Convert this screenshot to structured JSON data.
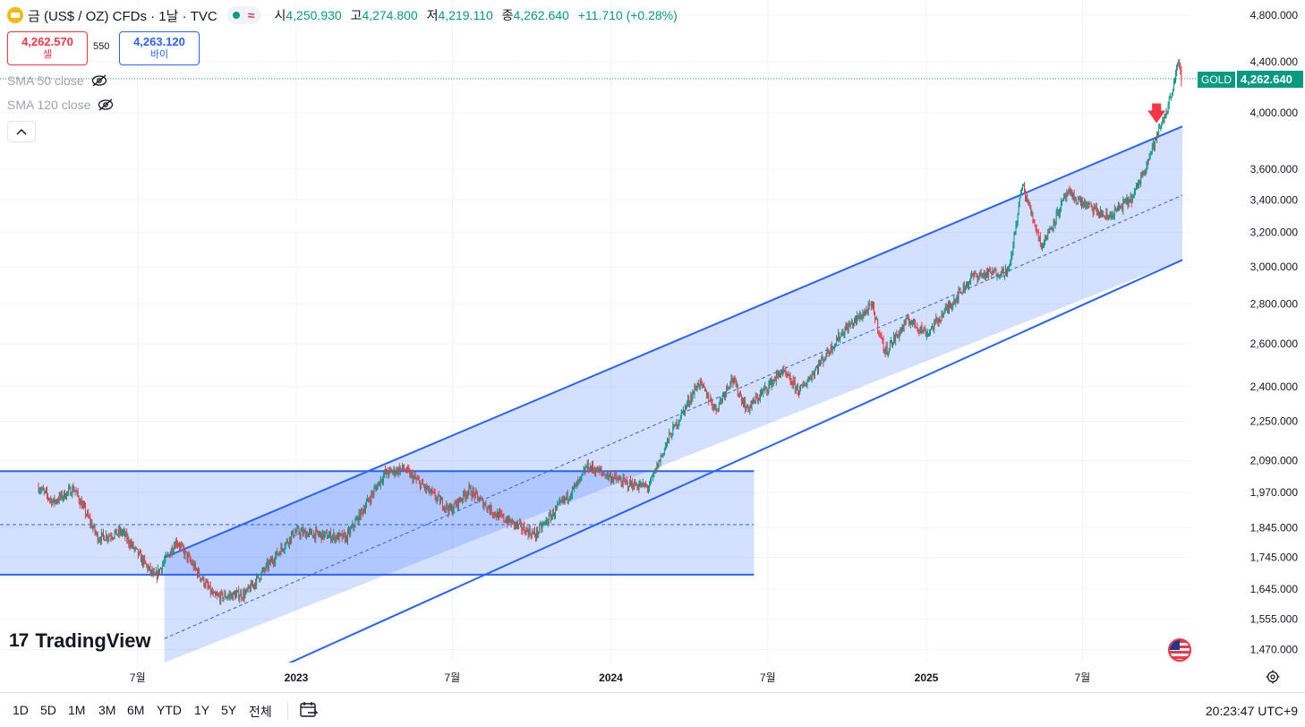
{
  "header": {
    "title": "금 (US$ / OZ) CFDs · 1날 · TVC",
    "open_label": "시",
    "open": "4,250.930",
    "high_label": "고",
    "high": "4,274.800",
    "low_label": "저",
    "low": "4,219.110",
    "close_label": "종",
    "close": "4,262.640",
    "change": "+11.710 (+0.28%)"
  },
  "trade": {
    "sell_price": "4,262.570",
    "sell_label": "셀",
    "spread": "550",
    "buy_price": "4,263.120",
    "buy_label": "바이"
  },
  "indicators": [
    {
      "label": "SMA 50 close"
    },
    {
      "label": "SMA 120 close"
    }
  ],
  "watermark": "TradingView",
  "watermark_logo": "17",
  "price_tag": {
    "symbol": "GOLD",
    "value": "4,262.640"
  },
  "timeframes": [
    "1D",
    "5D",
    "1M",
    "3M",
    "6M",
    "YTD",
    "1Y",
    "5Y",
    "전체"
  ],
  "clock": "20:23:47 UTC+9",
  "colors": {
    "up": "#089981",
    "down": "#f23645",
    "channel": "#2962ff",
    "channel_fill": "#2962ff"
  },
  "icons": [
    "eye-crossed-icon",
    "chevron-up-icon",
    "calendar-icon",
    "us-flag-icon",
    "gear-icon",
    "red-arrow-icon"
  ],
  "chart_data": {
    "type": "candlestick",
    "y_scale": "log",
    "y_range": [
      1470,
      4800
    ],
    "y_ticks": [
      "4,800.000",
      "4,400.000",
      "4,000.000",
      "3,600.000",
      "3,400.000",
      "3,200.000",
      "3,000.000",
      "2,800.000",
      "2,600.000",
      "2,400.000",
      "2,250.000",
      "2,090.000",
      "1,970.000",
      "1,845.000",
      "1,745.000",
      "1,645.000",
      "1,555.000",
      "1,470.000"
    ],
    "x_ticks": [
      "7월",
      "2023",
      "7월",
      "2024",
      "7월",
      "2025",
      "7월"
    ],
    "x_tick_dates": [
      "2022-07",
      "2023-01",
      "2023-07",
      "2024-01",
      "2024-07",
      "2025-01",
      "2025-07"
    ],
    "last_price": 4262.64,
    "path": [
      [
        "2022-03-08",
        1990
      ],
      [
        "2022-03-25",
        1935
      ],
      [
        "2022-04-18",
        1985
      ],
      [
        "2022-05-16",
        1810
      ],
      [
        "2022-06-13",
        1830
      ],
      [
        "2022-07-21",
        1680
      ],
      [
        "2022-08-15",
        1800
      ],
      [
        "2022-09-28",
        1620
      ],
      [
        "2022-11-03",
        1630
      ],
      [
        "2022-12-30",
        1830
      ],
      [
        "2023-02-28",
        1810
      ],
      [
        "2023-04-13",
        2040
      ],
      [
        "2023-05-05",
        2060
      ],
      [
        "2023-06-29",
        1905
      ],
      [
        "2023-07-20",
        1980
      ],
      [
        "2023-08-21",
        1890
      ],
      [
        "2023-10-05",
        1820
      ],
      [
        "2023-11-27",
        2015
      ],
      [
        "2023-12-04",
        2070
      ],
      [
        "2024-01-17",
        2005
      ],
      [
        "2024-02-14",
        1990
      ],
      [
        "2024-03-08",
        2180
      ],
      [
        "2024-04-12",
        2420
      ],
      [
        "2024-05-02",
        2300
      ],
      [
        "2024-05-20",
        2440
      ],
      [
        "2024-06-07",
        2300
      ],
      [
        "2024-07-17",
        2470
      ],
      [
        "2024-08-07",
        2380
      ],
      [
        "2024-09-26",
        2660
      ],
      [
        "2024-10-30",
        2790
      ],
      [
        "2024-11-14",
        2560
      ],
      [
        "2024-12-11",
        2720
      ],
      [
        "2025-01-02",
        2650
      ],
      [
        "2025-02-24",
        2950
      ],
      [
        "2025-04-07",
        2980
      ],
      [
        "2025-04-22",
        3500
      ],
      [
        "2025-05-15",
        3120
      ],
      [
        "2025-06-13",
        3440
      ],
      [
        "2025-07-30",
        3290
      ],
      [
        "2025-08-29",
        3420
      ],
      [
        "2025-09-23",
        3790
      ],
      [
        "2025-10-08",
        4040
      ],
      [
        "2025-10-20",
        4380
      ],
      [
        "2025-10-24",
        4262.64
      ]
    ],
    "overlays": {
      "horizontal_channel": {
        "start": "2022-01-20",
        "end": "2024-06-15",
        "lower": 1690,
        "upper": 2050,
        "mid": 1855
      },
      "rising_channel": {
        "start": "2022-08-01",
        "end": "2025-10-25",
        "upper_start": 1745,
        "upper_end": 3900,
        "lower_start": 1290,
        "lower_end": 3040,
        "mid_start": 1500,
        "mid_end": 3430
      },
      "arrow_marker": {
        "date": "2025-09-25",
        "price": 3950
      }
    }
  }
}
